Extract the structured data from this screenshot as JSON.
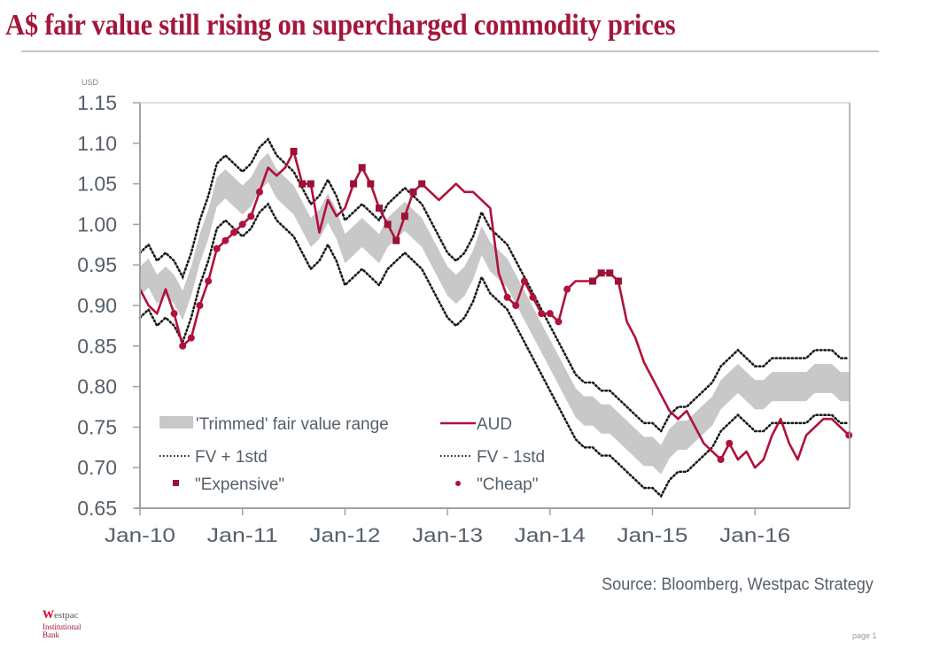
{
  "title": "A$ fair value still rising on supercharged commodity prices",
  "source": "Source: Bloomberg,  Westpac Strategy",
  "footer": {
    "logo_brand": "estpac",
    "logo_initial": "W",
    "logo_sub": "Institutional Bank",
    "page": "page 1"
  },
  "colors": {
    "aud": "#b0123a",
    "band": "#c8c8c8",
    "std": "#1a1a1a",
    "marker": "#9b1235",
    "axis": "#9aa3ab",
    "text": "#55606a"
  },
  "chart_data": {
    "type": "line",
    "title": "A$ fair value still rising on supercharged commodity prices",
    "ylabel": "USD",
    "xlabel": "",
    "ylim": [
      0.65,
      1.15
    ],
    "yticks": [
      "1.15",
      "1.10",
      "1.05",
      "1.00",
      "0.95",
      "0.90",
      "0.85",
      "0.80",
      "0.75",
      "0.70",
      "0.65"
    ],
    "xticks": [
      "Jan-10",
      "Jan-11",
      "Jan-12",
      "Jan-13",
      "Jan-14",
      "Jan-15",
      "Jan-16"
    ],
    "x_start_year": 2010,
    "x_end_year": 2016.95,
    "legend": {
      "band": "'Trimmed' fair value range",
      "aud": "AUD",
      "fv_plus": "FV + 1std",
      "fv_minus": "FV - 1std",
      "expensive": "\"Expensive\"",
      "cheap": "\"Cheap\""
    },
    "months": 84,
    "series": [
      {
        "name": "AUD",
        "values": [
          0.92,
          0.9,
          0.89,
          0.92,
          0.89,
          0.85,
          0.86,
          0.9,
          0.93,
          0.97,
          0.98,
          0.99,
          1.0,
          1.01,
          1.04,
          1.07,
          1.06,
          1.07,
          1.09,
          1.05,
          1.05,
          0.99,
          1.03,
          1.01,
          1.02,
          1.05,
          1.07,
          1.05,
          1.02,
          1.0,
          0.98,
          1.01,
          1.04,
          1.05,
          1.04,
          1.03,
          1.04,
          1.05,
          1.04,
          1.04,
          1.03,
          1.02,
          0.94,
          0.91,
          0.9,
          0.93,
          0.91,
          0.89,
          0.89,
          0.88,
          0.92,
          0.93,
          0.93,
          0.93,
          0.94,
          0.94,
          0.93,
          0.88,
          0.86,
          0.83,
          0.81,
          0.79,
          0.77,
          0.76,
          0.77,
          0.75,
          0.73,
          0.72,
          0.71,
          0.73,
          0.71,
          0.72,
          0.7,
          0.71,
          0.74,
          0.76,
          0.73,
          0.71,
          0.74,
          0.75,
          0.76,
          0.76,
          0.75,
          0.74
        ]
      },
      {
        "name": "Fair value mid",
        "values": [
          0.93,
          0.94,
          0.92,
          0.93,
          0.92,
          0.9,
          0.93,
          0.97,
          1.0,
          1.04,
          1.05,
          1.04,
          1.03,
          1.04,
          1.06,
          1.07,
          1.05,
          1.04,
          1.03,
          1.01,
          0.99,
          1.0,
          1.02,
          1.0,
          0.97,
          0.98,
          0.99,
          0.98,
          0.97,
          0.99,
          1.0,
          1.01,
          1.0,
          0.99,
          0.97,
          0.95,
          0.93,
          0.92,
          0.93,
          0.95,
          0.98,
          0.96,
          0.95,
          0.94,
          0.92,
          0.9,
          0.88,
          0.86,
          0.84,
          0.82,
          0.8,
          0.78,
          0.77,
          0.77,
          0.76,
          0.76,
          0.75,
          0.74,
          0.73,
          0.72,
          0.72,
          0.71,
          0.73,
          0.74,
          0.74,
          0.75,
          0.76,
          0.77,
          0.79,
          0.8,
          0.81,
          0.8,
          0.79,
          0.79,
          0.8,
          0.8,
          0.8,
          0.8,
          0.8,
          0.81,
          0.81,
          0.81,
          0.8,
          0.8
        ]
      },
      {
        "name": "FV + 1std offset",
        "values": [
          0.035
        ]
      },
      {
        "name": "FV - 1std offset",
        "values": [
          0.045
        ]
      }
    ],
    "markers": {
      "expensive_months": [
        18,
        19,
        20,
        25,
        26,
        27,
        28,
        29,
        30,
        31,
        32,
        33,
        53,
        54,
        55,
        56
      ],
      "cheap_months": [
        4,
        5,
        6,
        7,
        8,
        9,
        10,
        11,
        12,
        13,
        14,
        43,
        44,
        45,
        46,
        47,
        48,
        49,
        50,
        68,
        69,
        83
      ]
    }
  }
}
